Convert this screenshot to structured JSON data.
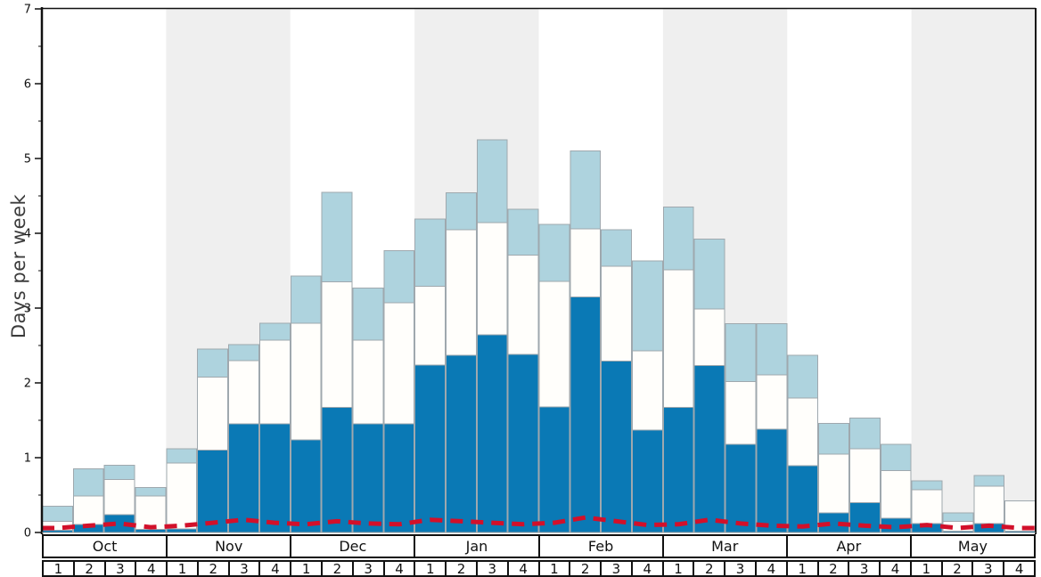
{
  "ylabel": "Days per week",
  "colors": {
    "dark_blue": "#0a79b5",
    "white_bar": "#fffefb",
    "light_blue": "#aed3de",
    "bar_border": "#9fa8ae",
    "red_line": "#d2102a",
    "band_gray": "#efefef",
    "axis_black": "#111111",
    "baseline_gray": "#9a9a9a"
  },
  "chart_data": {
    "type": "bar",
    "stacked": true,
    "title": "",
    "xlabel": "",
    "ylabel": "Days per week",
    "ylim": [
      0,
      7
    ],
    "y_ticks": [
      0,
      1,
      2,
      3,
      4,
      5,
      6,
      7
    ],
    "grid": false,
    "legend": "none",
    "months": [
      "Oct",
      "Nov",
      "Dec",
      "Jan",
      "Feb",
      "Mar",
      "Apr",
      "May"
    ],
    "weeks_per_month": [
      "1",
      "2",
      "3",
      "4"
    ],
    "shaded_months": [
      "Nov",
      "Jan",
      "Mar",
      "May"
    ],
    "series_note": "values are cumulative stack tops in days/week for 32 weeks (Oct w1 .. May w4)",
    "series": [
      {
        "name": "dark-blue-top",
        "color": "#0a79b5",
        "values": [
          0.03,
          0.11,
          0.24,
          0.04,
          0.05,
          1.1,
          1.45,
          1.45,
          1.24,
          1.67,
          1.45,
          1.45,
          2.24,
          2.37,
          2.64,
          2.38,
          1.68,
          3.15,
          2.29,
          1.37,
          1.67,
          2.23,
          1.18,
          1.38,
          0.89,
          0.26,
          0.4,
          0.19,
          0.12,
          0.02,
          0.12,
          0.02
        ]
      },
      {
        "name": "white-mid-top",
        "color": "#fffefb",
        "values": [
          0.15,
          0.49,
          0.71,
          0.49,
          0.93,
          2.08,
          2.3,
          2.57,
          2.8,
          3.35,
          2.57,
          3.07,
          3.29,
          4.05,
          4.14,
          3.71,
          3.36,
          4.06,
          3.56,
          2.43,
          3.51,
          2.99,
          2.02,
          2.11,
          1.8,
          1.05,
          1.12,
          0.83,
          0.57,
          0.15,
          0.62,
          0.42
        ]
      },
      {
        "name": "light-blue-top",
        "color": "#aed3de",
        "values": [
          0.35,
          0.85,
          0.9,
          0.6,
          1.12,
          2.45,
          2.51,
          2.8,
          3.43,
          4.55,
          3.27,
          3.77,
          4.19,
          4.54,
          5.25,
          4.32,
          4.12,
          5.1,
          4.05,
          3.63,
          4.35,
          3.92,
          2.79,
          2.79,
          2.37,
          1.46,
          1.53,
          1.18,
          0.69,
          0.26,
          0.76,
          0.42
        ]
      }
    ],
    "line": {
      "name": "red-dashed-line",
      "color": "#d2102a",
      "style": "dashed",
      "values": [
        0.06,
        0.09,
        0.12,
        0.07,
        0.09,
        0.13,
        0.17,
        0.13,
        0.11,
        0.15,
        0.12,
        0.11,
        0.17,
        0.15,
        0.13,
        0.11,
        0.13,
        0.2,
        0.15,
        0.1,
        0.11,
        0.17,
        0.12,
        0.09,
        0.08,
        0.12,
        0.09,
        0.07,
        0.1,
        0.06,
        0.09,
        0.06
      ]
    }
  }
}
